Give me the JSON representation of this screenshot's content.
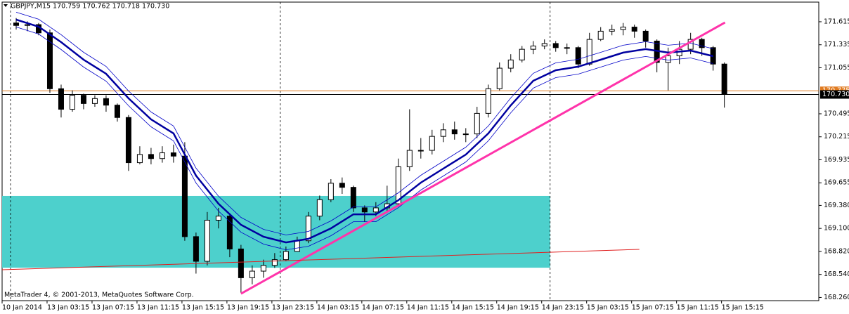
{
  "chart_data": {
    "type": "candlestick",
    "title": "GBPJPY,M15 170.759 170.762 170.718 170.730",
    "footer": "MetaTrader 4, © 2001-2013, MetaQuotes Software Corp.",
    "x": [
      0.5,
      1.5,
      2.5,
      3.5,
      4.5,
      5.5,
      6.5,
      7.5,
      8.5,
      9.5,
      10.5,
      11.5,
      12.5,
      13.5,
      14.5,
      15.5,
      16.5,
      17.5,
      18.5,
      19.5,
      20.5,
      21.5,
      22.5,
      23.5,
      24.5,
      25.5,
      26.5,
      27.5,
      28.5,
      29.5,
      30.5,
      31.5,
      32.5,
      33.5,
      34.5,
      35.5,
      36.5,
      37.5,
      38.5,
      39.5,
      40.5,
      41.5,
      42.5,
      43.5,
      44.5,
      45.5,
      46.5,
      47.5,
      48.5,
      49.5,
      50.5,
      51.5,
      52.5,
      53.5,
      54.5,
      55.5,
      56.5,
      57.5,
      58.5,
      59.5,
      60.5,
      61.5,
      62.5,
      63.5
    ],
    "open": [
      171.6,
      171.57,
      171.58,
      171.48,
      170.8,
      170.55,
      170.72,
      170.62,
      170.68,
      170.6,
      170.45,
      169.9,
      170.0,
      169.95,
      170.02,
      169.98,
      169.0,
      168.7,
      169.2,
      169.25,
      168.85,
      168.5,
      168.58,
      168.65,
      168.72,
      168.82,
      168.95,
      169.25,
      169.45,
      169.65,
      169.6,
      169.35,
      169.3,
      169.35,
      169.4,
      169.85,
      170.05,
      170.05,
      170.22,
      170.3,
      170.25,
      170.25,
      170.5,
      170.8,
      171.05,
      171.15,
      171.28,
      171.32,
      171.35,
      171.3,
      171.3,
      171.1,
      171.4,
      171.5,
      171.52,
      171.55,
      171.5,
      171.38,
      171.12,
      171.2,
      171.28,
      171.4,
      171.3,
      171.1
    ],
    "high": [
      171.66,
      171.62,
      171.6,
      171.52,
      170.85,
      170.78,
      170.74,
      170.72,
      170.72,
      170.62,
      170.48,
      170.1,
      170.08,
      170.1,
      170.12,
      170.15,
      169.05,
      169.3,
      169.35,
      169.28,
      168.9,
      168.65,
      168.72,
      168.8,
      168.88,
      169.0,
      169.3,
      169.5,
      169.7,
      169.72,
      169.62,
      169.38,
      169.42,
      169.62,
      169.95,
      170.55,
      170.2,
      170.3,
      170.38,
      170.4,
      170.32,
      170.58,
      170.85,
      171.12,
      171.22,
      171.32,
      171.38,
      171.4,
      171.38,
      171.35,
      171.32,
      171.48,
      171.55,
      171.58,
      171.6,
      171.58,
      171.52,
      171.4,
      171.3,
      171.38,
      171.48,
      171.42,
      171.32,
      171.12
    ],
    "low": [
      171.52,
      171.5,
      171.45,
      170.75,
      170.45,
      170.52,
      170.55,
      170.58,
      170.52,
      170.4,
      169.8,
      169.88,
      169.88,
      169.9,
      169.9,
      168.95,
      168.55,
      168.65,
      169.1,
      168.75,
      168.32,
      168.42,
      168.5,
      168.62,
      168.7,
      168.82,
      168.92,
      169.2,
      169.42,
      169.52,
      169.3,
      169.18,
      169.25,
      169.3,
      169.38,
      169.8,
      169.95,
      170.0,
      170.15,
      170.18,
      170.15,
      170.2,
      170.45,
      170.78,
      171.0,
      171.12,
      171.22,
      171.28,
      171.25,
      171.22,
      171.05,
      171.08,
      171.38,
      171.45,
      171.45,
      171.42,
      171.3,
      171.0,
      170.78,
      171.1,
      171.22,
      171.2,
      171.02,
      170.57
    ],
    "close": [
      171.57,
      171.58,
      171.48,
      170.8,
      170.55,
      170.72,
      170.62,
      170.68,
      170.6,
      170.45,
      169.9,
      170.0,
      169.95,
      170.02,
      169.98,
      169.0,
      168.7,
      169.2,
      169.25,
      168.85,
      168.5,
      168.58,
      168.65,
      168.72,
      168.82,
      168.95,
      169.25,
      169.45,
      169.65,
      169.6,
      169.35,
      169.3,
      169.35,
      169.4,
      169.85,
      170.05,
      170.05,
      170.22,
      170.3,
      170.25,
      170.25,
      170.5,
      170.8,
      171.05,
      171.15,
      171.28,
      171.32,
      171.35,
      171.3,
      171.3,
      171.1,
      171.4,
      171.5,
      171.52,
      171.55,
      171.5,
      171.38,
      171.12,
      171.2,
      171.28,
      171.4,
      171.3,
      171.1,
      170.73
    ],
    "series": [
      {
        "color": "#0000a0",
        "width": 2.5,
        "x": [
          0.5,
          2.5,
          4.5,
          6.5,
          8.5,
          10.5,
          12.5,
          14.5,
          16.5,
          18.5,
          20.5,
          22.5,
          24.5,
          26.5,
          28.5,
          30.5,
          32.5,
          34.5,
          36.5,
          38.5,
          40.5,
          42.5,
          44.5,
          46.5,
          48.5,
          50.5,
          52.5,
          54.5,
          56.5,
          58.5,
          60.5,
          62.5
        ],
        "values": [
          171.641,
          171.555,
          171.367,
          171.153,
          170.982,
          170.683,
          170.427,
          170.256,
          169.743,
          169.401,
          169.144,
          168.999,
          168.93,
          168.973,
          169.101,
          169.272,
          169.272,
          169.443,
          169.657,
          169.828,
          169.999,
          170.256,
          170.598,
          170.897,
          171.025,
          171.068,
          171.153,
          171.239,
          171.282,
          171.239,
          171.264,
          171.196
        ]
      },
      {
        "color": "#0000c8",
        "width": 0.8,
        "x": [
          0.5,
          2.5,
          4.5,
          6.5,
          8.5,
          10.5,
          12.5,
          14.5,
          16.5,
          18.5,
          20.5,
          22.5,
          24.5,
          26.5,
          28.5,
          30.5,
          32.5,
          34.5,
          36.5,
          38.5,
          40.5,
          42.5,
          44.5,
          46.5,
          48.5,
          50.5,
          52.5,
          54.5,
          56.5,
          58.5,
          60.5,
          62.5
        ],
        "values": [
          171.731,
          171.645,
          171.457,
          171.243,
          171.072,
          170.773,
          170.517,
          170.346,
          169.833,
          169.491,
          169.234,
          169.089,
          169.02,
          169.063,
          169.191,
          169.362,
          169.362,
          169.533,
          169.747,
          169.918,
          170.089,
          170.346,
          170.688,
          170.987,
          171.115,
          171.158,
          171.243,
          171.329,
          171.372,
          171.329,
          171.354,
          171.286
        ]
      },
      {
        "color": "#0000c8",
        "width": 0.8,
        "x": [
          0.5,
          2.5,
          4.5,
          6.5,
          8.5,
          10.5,
          12.5,
          14.5,
          16.5,
          18.5,
          20.5,
          22.5,
          24.5,
          26.5,
          28.5,
          30.5,
          32.5,
          34.5,
          36.5,
          38.5,
          40.5,
          42.5,
          44.5,
          46.5,
          48.5,
          50.5,
          52.5,
          54.5,
          56.5,
          58.5,
          60.5,
          62.5
        ],
        "values": [
          171.551,
          171.465,
          171.277,
          171.063,
          170.892,
          170.593,
          170.337,
          170.166,
          169.653,
          169.311,
          169.054,
          168.909,
          168.84,
          168.883,
          169.011,
          169.182,
          169.182,
          169.353,
          169.567,
          169.738,
          169.909,
          170.166,
          170.508,
          170.807,
          170.935,
          170.978,
          171.063,
          171.149,
          171.192,
          171.149,
          171.174,
          171.106
        ]
      },
      {
        "color": "#ff33aa",
        "width": 3,
        "x": [
          20.5,
          63.56
        ],
        "values": [
          168.306,
          171.606
        ]
      },
      {
        "color": "#e02020",
        "width": 1,
        "x": [
          -0.75,
          55.94
        ],
        "values": [
          168.597,
          168.845
        ]
      }
    ],
    "zone": {
      "color": "#4dd0cc",
      "x": [
        -0.75,
        48
      ],
      "values": [
        169.495,
        168.622
      ]
    },
    "levels": [
      {
        "color": "#e07b20",
        "value": 170.775,
        "label": "170.775"
      },
      {
        "color": "#000000",
        "value": 170.73,
        "label": "170.730"
      }
    ],
    "separators": [
      0,
      24,
      48
    ],
    "xlim": [
      -0.75,
      71.9
    ],
    "ylim": [
      168.221,
      171.854
    ],
    "yticks": [
      171.615,
      171.335,
      171.055,
      170.495,
      170.215,
      169.935,
      169.655,
      {
        "value": 169.38,
        "label": "169.380"
      },
      {
        "value": 169.1,
        "label": "169.100"
      },
      {
        "value": 168.82,
        "label": "168.820"
      },
      {
        "value": 168.54,
        "label": "168.540"
      },
      {
        "value": 168.26,
        "label": "168.260"
      }
    ],
    "xticks": [
      {
        "value": -0.75,
        "label": "10 Jan 2014"
      },
      {
        "value": 3.25,
        "label": "13 Jan 03:15"
      },
      {
        "value": 7.25,
        "label": "13 Jan 07:15"
      },
      {
        "value": 11.25,
        "label": "13 Jan 11:15"
      },
      {
        "value": 15.25,
        "label": "13 Jan 15:15"
      },
      {
        "value": 19.25,
        "label": "13 Jan 19:15"
      },
      {
        "value": 23.25,
        "label": "13 Jan 23:15"
      },
      {
        "value": 27.25,
        "label": "14 Jan 03:15"
      },
      {
        "value": 31.25,
        "label": "14 Jan 07:15"
      },
      {
        "value": 35.25,
        "label": "14 Jan 11:15"
      },
      {
        "value": 39.25,
        "label": "14 Jan 15:15"
      },
      {
        "value": 43.25,
        "label": "14 Jan 19:15"
      },
      {
        "value": 47.25,
        "label": "14 Jan 23:15"
      },
      {
        "value": 51.25,
        "label": "15 Jan 03:15"
      },
      {
        "value": 55.25,
        "label": "15 Jan 07:15"
      },
      {
        "value": 59.25,
        "label": "15 Jan 11:15"
      },
      {
        "value": 63.25,
        "label": "15 Jan 15:15"
      }
    ]
  }
}
